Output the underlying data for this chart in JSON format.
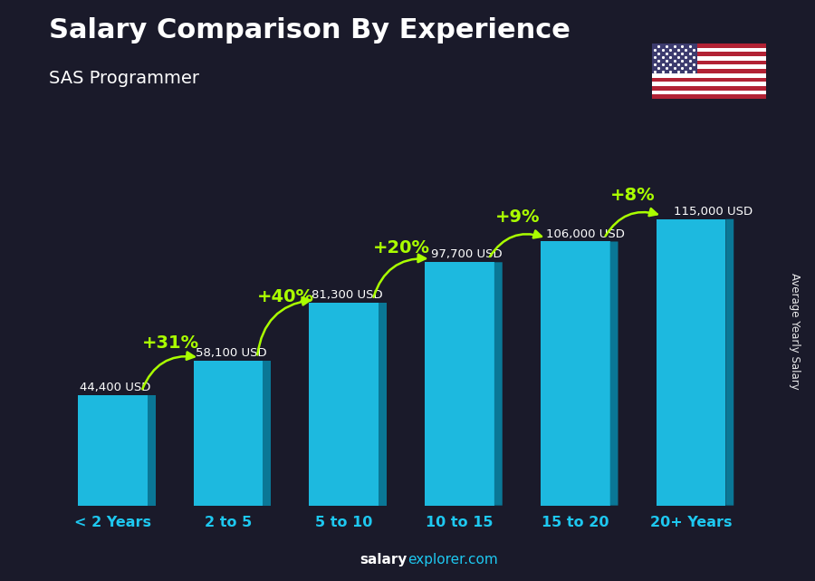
{
  "categories": [
    "< 2 Years",
    "2 to 5",
    "5 to 10",
    "10 to 15",
    "15 to 20",
    "20+ Years"
  ],
  "values": [
    44400,
    58100,
    81300,
    97700,
    106000,
    115000
  ],
  "value_labels": [
    "44,400 USD",
    "58,100 USD",
    "81,300 USD",
    "97,700 USD",
    "106,000 USD",
    "115,000 USD"
  ],
  "pct_labels": [
    "+31%",
    "+40%",
    "+20%",
    "+9%",
    "+8%"
  ],
  "bar_color": "#1EC8F0",
  "bar_left_color": "#0EB8E0",
  "bar_right_color": "#0888AA",
  "bar_top_color": "#60DFFF",
  "title": "Salary Comparison By Experience",
  "subtitle": "SAS Programmer",
  "ylabel": "Average Yearly Salary",
  "bg_color": "#1a1a2a",
  "title_color": "#ffffff",
  "subtitle_color": "#ffffff",
  "value_label_color": "#ffffff",
  "pct_color": "#aaff00",
  "axis_label_color": "#1EC8F0",
  "ylim_max": 140000,
  "bar_width": 0.6
}
